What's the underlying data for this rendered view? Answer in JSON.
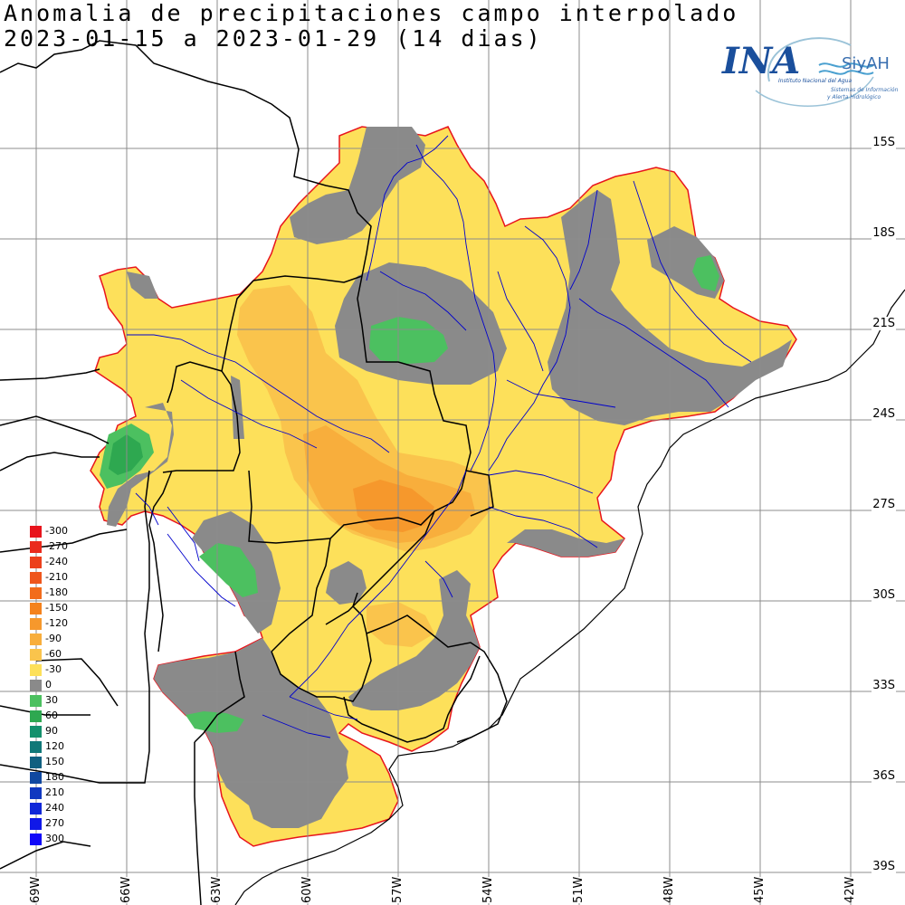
{
  "title_line1": "Anomalia de precipitaciones campo interpolado",
  "title_line2": "2023-01-15 a 2023-01-29 (14 dias)",
  "logo": {
    "ina": "INA",
    "siyah": "SiyAH",
    "sub1": "Instituto Nacional del Agua",
    "sub2": "Sistemas de Información",
    "sub3": "y Alerta Hidrológico"
  },
  "lat_labels": [
    "15S",
    "18S",
    "21S",
    "24S",
    "27S",
    "30S",
    "33S",
    "36S",
    "39S"
  ],
  "lon_labels": [
    "69W",
    "66W",
    "63W",
    "60W",
    "57W",
    "54W",
    "51W",
    "48W",
    "45W",
    "42W"
  ],
  "legend": [
    {
      "label": "-300",
      "color": "#e8141c"
    },
    {
      "label": "-270",
      "color": "#ea2a1c"
    },
    {
      "label": "-240",
      "color": "#ec401c"
    },
    {
      "label": "-210",
      "color": "#ef561c"
    },
    {
      "label": "-180",
      "color": "#f26c1c"
    },
    {
      "label": "-150",
      "color": "#f4821c"
    },
    {
      "label": "-120",
      "color": "#f6982c"
    },
    {
      "label": "-90",
      "color": "#f8ae3c"
    },
    {
      "label": "-60",
      "color": "#fac44c"
    },
    {
      "label": "-30",
      "color": "#fde05a"
    },
    {
      "label": "0",
      "color": "#8a8a8a"
    },
    {
      "label": "30",
      "color": "#4cc060"
    },
    {
      "label": "60",
      "color": "#2ea850"
    },
    {
      "label": "90",
      "color": "#14906c"
    },
    {
      "label": "120",
      "color": "#107878"
    },
    {
      "label": "150",
      "color": "#106080"
    },
    {
      "label": "180",
      "color": "#1048a0"
    },
    {
      "label": "210",
      "color": "#1038c0"
    },
    {
      "label": "240",
      "color": "#1028d8"
    },
    {
      "label": "270",
      "color": "#1018e8"
    },
    {
      "label": "300",
      "color": "#1008f8"
    }
  ]
}
